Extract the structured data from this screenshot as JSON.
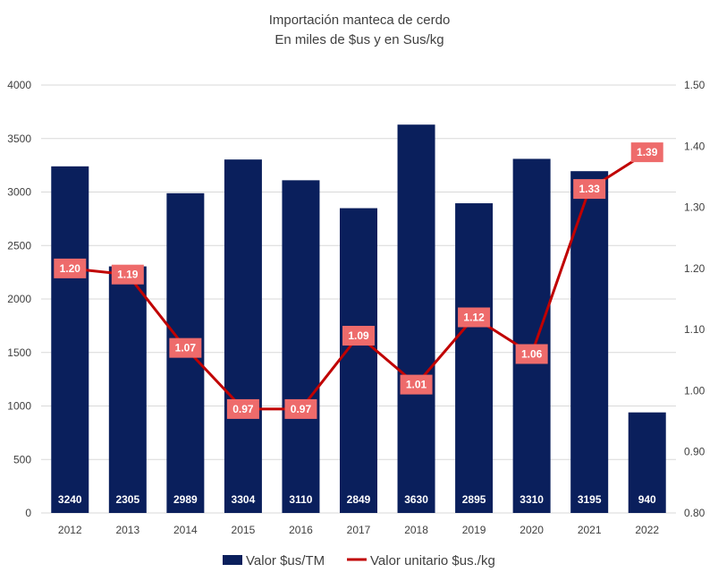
{
  "chart_data": {
    "type": "bar",
    "title": [
      "Importación manteca de cerdo",
      "En miles de $us y en Sus/kg"
    ],
    "categories": [
      "2012",
      "2013",
      "2014",
      "2015",
      "2016",
      "2017",
      "2018",
      "2019",
      "2020",
      "2021",
      "2022"
    ],
    "series": [
      {
        "name": "Valor $us/TM",
        "type": "bar",
        "axis": "left",
        "color": "#0a1f5c",
        "values": [
          3240,
          2305,
          2989,
          3304,
          3110,
          2849,
          3630,
          2895,
          3310,
          3195,
          940
        ],
        "labels": [
          "3240",
          "2305",
          "2989",
          "3304",
          "3110",
          "2849",
          "3630",
          "2895",
          "3310",
          "3195",
          "940"
        ]
      },
      {
        "name": "Valor unitario $us./kg",
        "type": "line",
        "axis": "right",
        "color": "#c00000",
        "label_color": "#ee6b6b",
        "values": [
          1.2,
          1.19,
          1.07,
          0.97,
          0.97,
          1.09,
          1.01,
          1.12,
          1.06,
          1.33,
          1.39
        ],
        "labels": [
          "1.20",
          "1.19",
          "1.07",
          "0.97",
          "0.97",
          "1.09",
          "1.01",
          "1.12",
          "1.06",
          "1.33",
          "1.39"
        ]
      }
    ],
    "y_left": {
      "lim": [
        0,
        4000
      ],
      "ticks": [
        "0",
        "500",
        "1000",
        "1500",
        "2000",
        "2500",
        "3000",
        "3500",
        "4000"
      ]
    },
    "y_right": {
      "lim": [
        0.8,
        1.5
      ],
      "ticks": [
        "0.80",
        "0.90",
        "1.00",
        "1.10",
        "1.20",
        "1.30",
        "1.40",
        "1.50"
      ]
    },
    "grid": true,
    "legend_position": "bottom"
  }
}
